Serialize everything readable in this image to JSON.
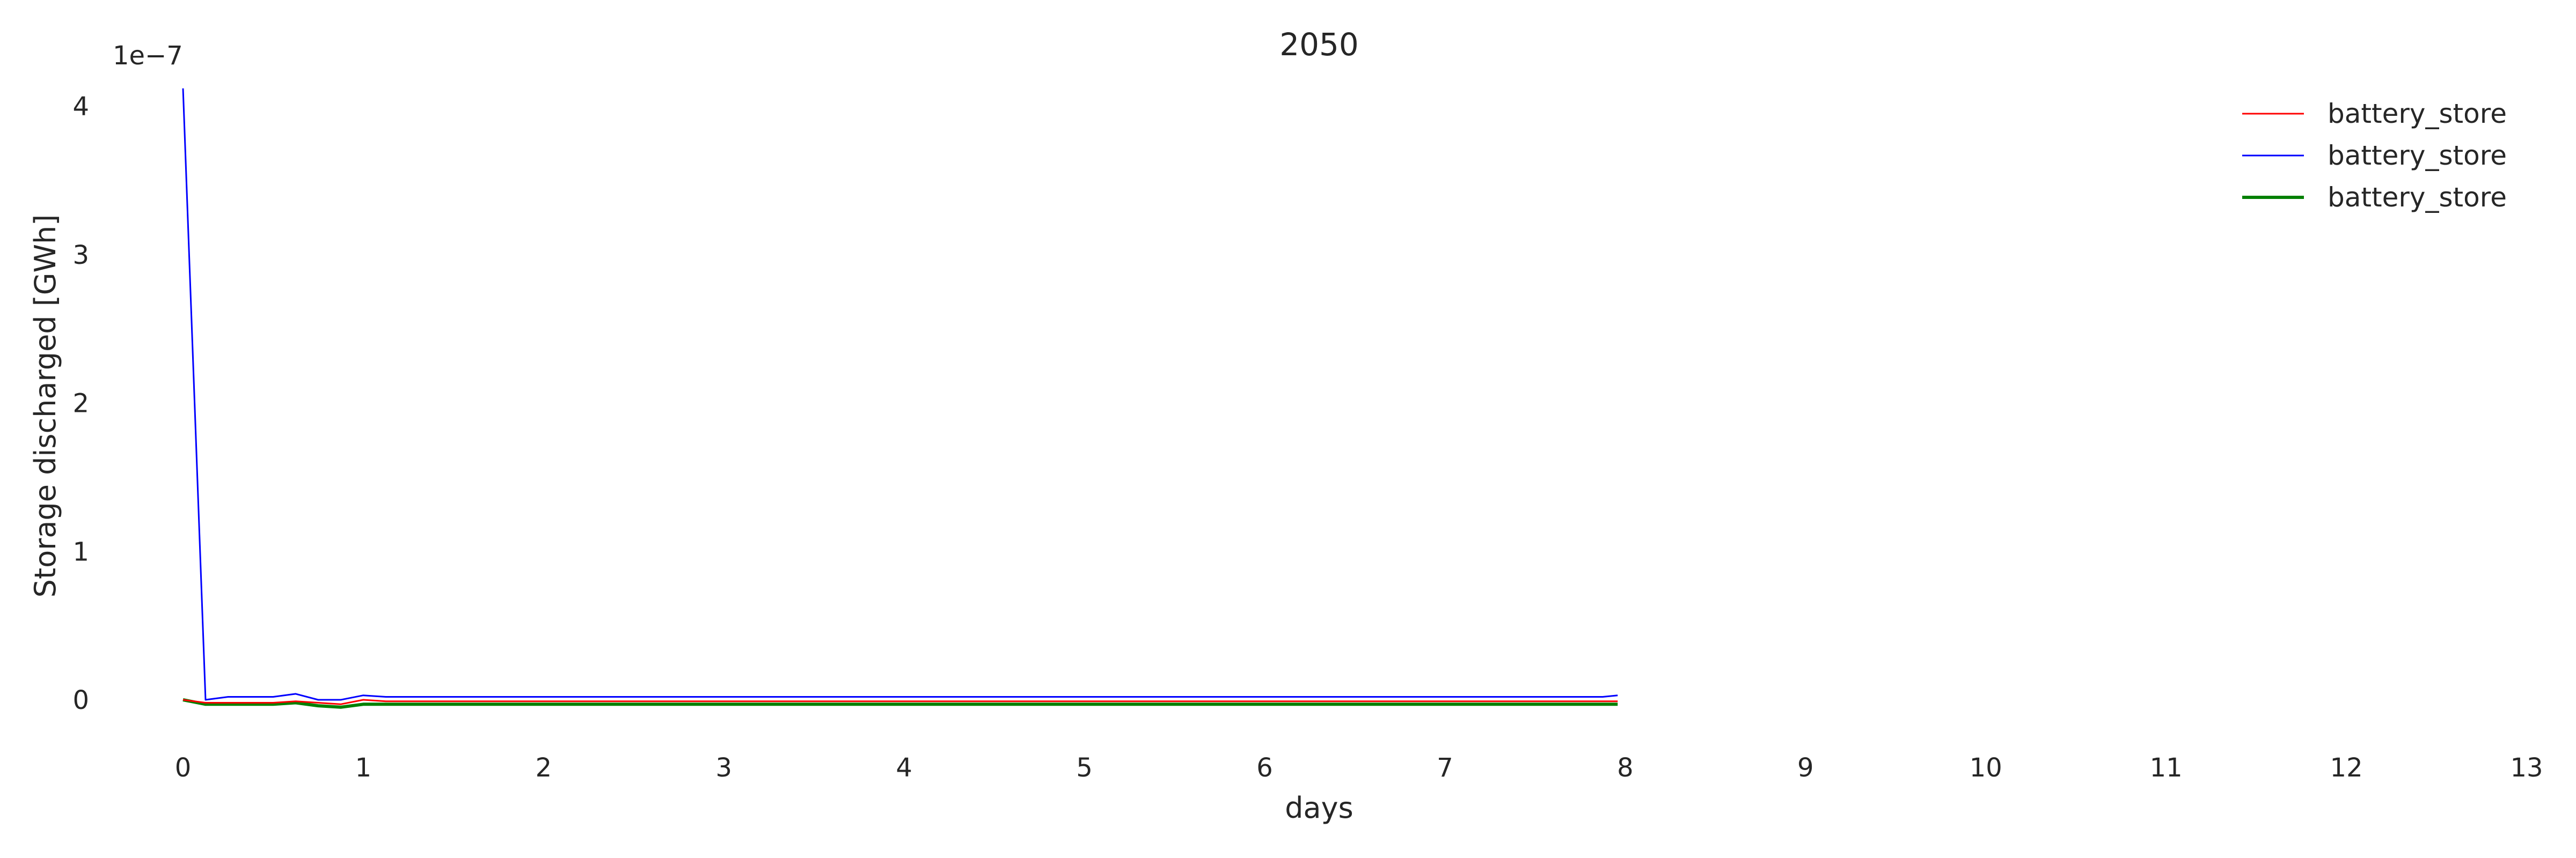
{
  "chart_data": {
    "type": "line",
    "title": "2050",
    "xlabel": "days",
    "ylabel": "Storage discharged [GWh]",
    "y_offset_text": "1e−7",
    "y_scale_factor": 1e-07,
    "xlim": [
      0,
      13
    ],
    "ylim": [
      -0.25,
      4.25
    ],
    "xticks": [
      0,
      1,
      2,
      3,
      4,
      5,
      6,
      7,
      8,
      9,
      10,
      11,
      12,
      13
    ],
    "yticks": [
      0,
      1,
      2,
      3,
      4
    ],
    "grid": false,
    "legend_position": "top-right",
    "x": [
      0,
      0.125,
      0.25,
      0.375,
      0.5,
      0.625,
      0.75,
      0.875,
      1,
      1.125,
      1.25,
      1.5,
      2,
      3,
      4,
      5,
      6,
      7,
      7.5,
      7.875,
      7.958
    ],
    "series": [
      {
        "name": "battery_store",
        "color": "#ff0000",
        "stroke": 3,
        "values": [
          0.0,
          -0.02,
          -0.02,
          -0.02,
          -0.02,
          -0.01,
          -0.02,
          -0.03,
          0.0,
          -0.01,
          -0.01,
          -0.01,
          -0.01,
          -0.01,
          -0.01,
          -0.01,
          -0.01,
          -0.01,
          -0.01,
          -0.01,
          -0.01
        ]
      },
      {
        "name": "battery_store",
        "color": "#0000ff",
        "stroke": 3,
        "values": [
          4.12,
          0.0,
          0.02,
          0.02,
          0.02,
          0.04,
          0.0,
          0.0,
          0.03,
          0.02,
          0.02,
          0.02,
          0.02,
          0.02,
          0.02,
          0.02,
          0.02,
          0.02,
          0.02,
          0.02,
          0.03
        ]
      },
      {
        "name": "battery_store",
        "color": "#008000",
        "stroke": 6,
        "values": [
          0.0,
          -0.03,
          -0.03,
          -0.03,
          -0.03,
          -0.02,
          -0.04,
          -0.05,
          -0.03,
          -0.03,
          -0.03,
          -0.03,
          -0.03,
          -0.03,
          -0.03,
          -0.03,
          -0.03,
          -0.03,
          -0.03,
          -0.03,
          -0.03
        ]
      }
    ]
  }
}
